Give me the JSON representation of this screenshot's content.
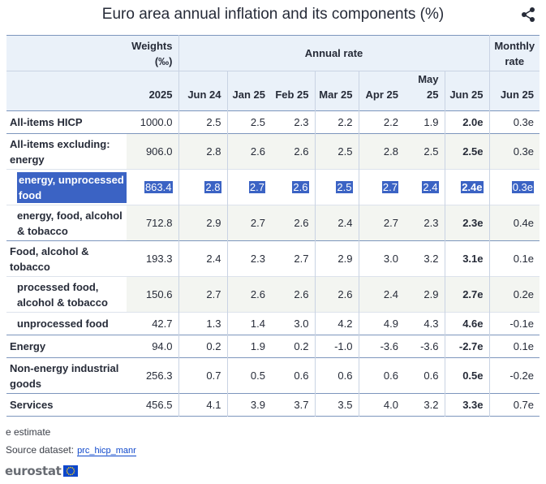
{
  "title": "Euro area annual inflation and its components (%)",
  "header": {
    "weights_label": "Weights",
    "weights_unit": "(‰)",
    "annual_rate_label": "Annual rate",
    "monthly_rate_label": "Monthly rate",
    "columns": [
      "2025",
      "Jun 24",
      "Jan 25",
      "Feb 25",
      "Mar 25",
      "Apr 25",
      "May 25",
      "Jun 25",
      "Jun 25"
    ]
  },
  "rows": [
    {
      "label": "All-items HICP",
      "values": [
        "1000.0",
        "2.5",
        "2.5",
        "2.3",
        "2.2",
        "2.2",
        "1.9",
        "2.0e",
        "0.3e"
      ]
    },
    {
      "label": "All-items excluding: energy",
      "values": [
        "906.0",
        "2.8",
        "2.6",
        "2.6",
        "2.5",
        "2.8",
        "2.5",
        "2.5e",
        "0.3e"
      ]
    },
    {
      "label": "energy, unprocessed food",
      "values": [
        "863.4",
        "2.8",
        "2.7",
        "2.6",
        "2.5",
        "2.7",
        "2.4",
        "2.4e",
        "0.3e"
      ]
    },
    {
      "label": "energy, food, alcohol & tobacco",
      "values": [
        "712.8",
        "2.9",
        "2.7",
        "2.6",
        "2.4",
        "2.7",
        "2.3",
        "2.3e",
        "0.4e"
      ]
    },
    {
      "label": "Food, alcohol & tobacco",
      "values": [
        "193.3",
        "2.4",
        "2.3",
        "2.7",
        "2.9",
        "3.0",
        "3.2",
        "3.1e",
        "0.1e"
      ]
    },
    {
      "label": "processed food, alcohol & tobacco",
      "values": [
        "150.6",
        "2.7",
        "2.6",
        "2.6",
        "2.6",
        "2.4",
        "2.9",
        "2.7e",
        "0.2e"
      ]
    },
    {
      "label": "unprocessed food",
      "values": [
        "42.7",
        "1.3",
        "1.4",
        "3.0",
        "4.2",
        "4.9",
        "4.3",
        "4.6e",
        "-0.1e"
      ]
    },
    {
      "label": "Energy",
      "values": [
        "94.0",
        "0.2",
        "1.9",
        "0.2",
        "-1.0",
        "-3.6",
        "-3.6",
        "-2.7e",
        "0.1e"
      ]
    },
    {
      "label": "Non-energy industrial goods",
      "values": [
        "256.3",
        "0.7",
        "0.5",
        "0.6",
        "0.6",
        "0.6",
        "0.6",
        "0.5e",
        "-0.2e"
      ]
    },
    {
      "label": "Services",
      "values": [
        "456.5",
        "4.1",
        "3.9",
        "3.7",
        "3.5",
        "4.0",
        "3.2",
        "3.3e",
        "0.7e"
      ]
    }
  ],
  "footnote": "e estimate",
  "source_label": "Source dataset:",
  "source_link": "prc_hicp_manr",
  "logo": "eurostat",
  "icons": {
    "share": "share-icon",
    "eu_flag": "eu-flag-icon"
  },
  "colors": {
    "header_bg": "#eaf1f9",
    "selection": "#3b63c4",
    "link": "#0e47cb"
  }
}
